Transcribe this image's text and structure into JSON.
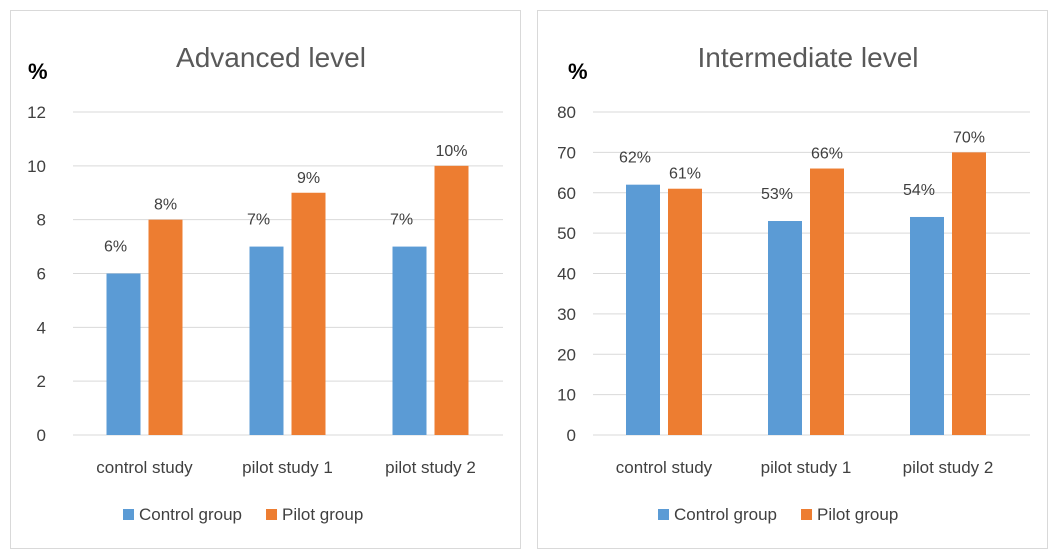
{
  "chart_data": [
    {
      "type": "bar",
      "title": "Advanced level",
      "ylabel": "%",
      "ylim": [
        0,
        12
      ],
      "yticks": [
        0,
        2,
        4,
        6,
        8,
        10,
        12
      ],
      "categories": [
        "control study",
        "pilot study 1",
        "pilot study 2"
      ],
      "series": [
        {
          "name": "Control group",
          "color": "#5b9bd5",
          "values": [
            6,
            7,
            7
          ],
          "labels": [
            "6%",
            "7%",
            "7%"
          ]
        },
        {
          "name": "Pilot group",
          "color": "#ed7d31",
          "values": [
            8,
            9,
            10
          ],
          "labels": [
            "8%",
            "9%",
            "10%"
          ]
        }
      ],
      "legend": "bottom",
      "grid": true
    },
    {
      "type": "bar",
      "title": "Intermediate level",
      "ylabel": "%",
      "ylim": [
        0,
        80
      ],
      "yticks": [
        0,
        10,
        20,
        30,
        40,
        50,
        60,
        70,
        80
      ],
      "categories": [
        "control study",
        "pilot study 1",
        "pilot study 2"
      ],
      "series": [
        {
          "name": "Control group",
          "color": "#5b9bd5",
          "values": [
            62,
            53,
            54
          ],
          "labels": [
            "62%",
            "53%",
            "54%"
          ]
        },
        {
          "name": "Pilot group",
          "color": "#ed7d31",
          "values": [
            61,
            66,
            70
          ],
          "labels": [
            "61%",
            "66%",
            "70%"
          ]
        }
      ],
      "legend": "bottom",
      "grid": true
    }
  ]
}
